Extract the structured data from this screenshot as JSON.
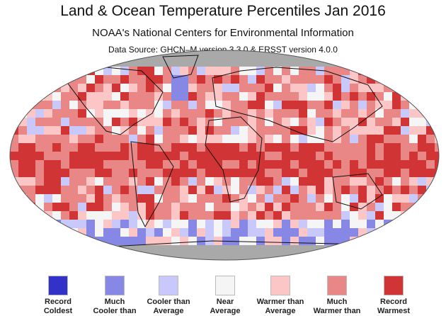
{
  "title": "Land & Ocean Temperature Percentiles Jan 2016",
  "subtitle": "NOAA's National Centers for Environmental Information",
  "source": "Data Source: GHCN–M version 3.3.0 & ERSST version 4.0.0",
  "map": {
    "projection": "Robinson",
    "no_data_color": "#a9a9a9"
  },
  "legend": [
    {
      "label1": "Record",
      "label2": "Coldest",
      "color": "#3232c8"
    },
    {
      "label1": "Much",
      "label2": "Cooler than",
      "color": "#8787e6"
    },
    {
      "label1": "Cooler than",
      "label2": "Average",
      "color": "#c8c8fa"
    },
    {
      "label1": "Near",
      "label2": "Average",
      "color": "#f5f5f5"
    },
    {
      "label1": "Warmer than",
      "label2": "Average",
      "color": "#fcc6c6"
    },
    {
      "label1": "Much",
      "label2": "Warmer than",
      "color": "#e98787"
    },
    {
      "label1": "Record",
      "label2": "Warmest",
      "color": "#d03434"
    }
  ]
}
